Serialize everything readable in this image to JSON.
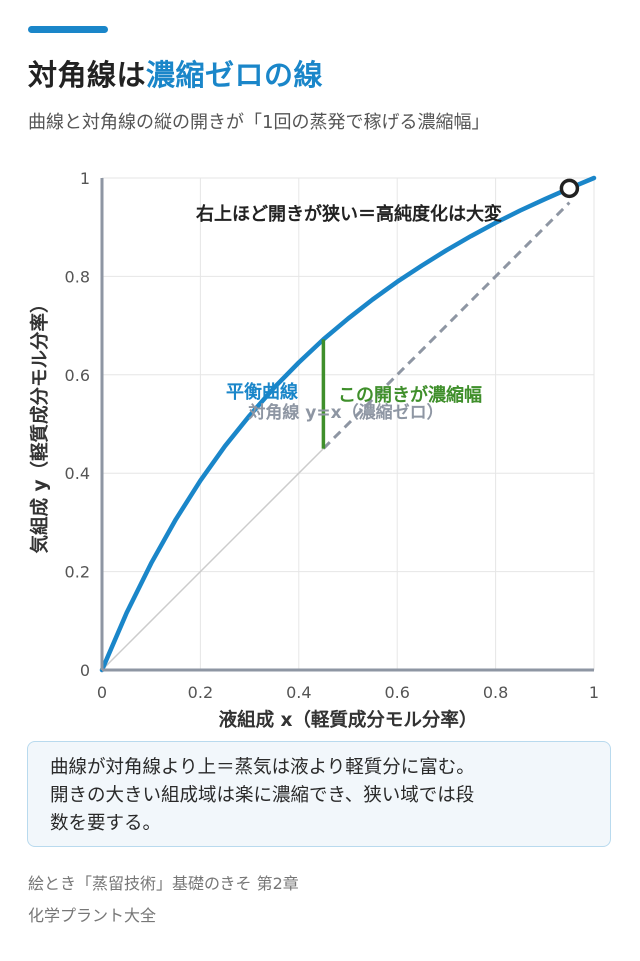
{
  "header": {
    "title_prefix": "対角線は",
    "title_highlight": "濃縮ゼロの線",
    "subtitle": "曲線と対角線の縦の開きが「1回の蒸発で稼げる濃縮幅」"
  },
  "chart_data": {
    "type": "line",
    "xlabel": "液組成 x（軽質成分モル分率）",
    "ylabel": "気組成 y（軽質成分モル分率）",
    "xlim": [
      0,
      1
    ],
    "ylim": [
      0,
      1
    ],
    "x_ticks": [
      0,
      0.2,
      0.4,
      0.6,
      0.8,
      1
    ],
    "x_tick_labels": [
      "0",
      "0.2",
      "0.4",
      "0.6",
      "0.8",
      "1"
    ],
    "y_ticks": [
      0,
      0.2,
      0.4,
      0.6,
      0.8,
      1
    ],
    "y_tick_labels": [
      "0",
      "0.2",
      "0.4",
      "0.6",
      "0.8",
      "1"
    ],
    "grid": true,
    "series": [
      {
        "name": "平衡曲線",
        "color": "#1a86c9",
        "x": [
          0,
          0.05,
          0.1,
          0.15,
          0.2,
          0.25,
          0.3,
          0.35,
          0.4,
          0.45,
          0.5,
          0.55,
          0.6,
          0.65,
          0.7,
          0.75,
          0.8,
          0.85,
          0.9,
          0.95,
          1.0
        ],
        "y": [
          0,
          0.116,
          0.217,
          0.306,
          0.385,
          0.455,
          0.517,
          0.574,
          0.625,
          0.672,
          0.714,
          0.753,
          0.789,
          0.822,
          0.853,
          0.882,
          0.909,
          0.934,
          0.957,
          0.979,
          1.0
        ]
      },
      {
        "name": "対角線 y=x（濃縮ゼロ）",
        "color": "#cccccc",
        "x": [
          0,
          1
        ],
        "y": [
          0,
          1
        ]
      }
    ],
    "gap_marker": {
      "x": 0.45,
      "y_low": 0.45,
      "y_high": 0.672,
      "color": "#3f8f2b",
      "label": "この開きが濃縮幅"
    },
    "highlight_point": {
      "x": 0.95,
      "y": 0.979,
      "label": "右上ほど開きが狭い＝高純度化は大変"
    },
    "colors": {
      "curve": "#1a86c9",
      "diagonal": "#cccccc",
      "diagonal_dash": "#8e96a3",
      "gap": "#3f8f2b",
      "axis": "#8e96a3",
      "grid": "#e6e6e6"
    }
  },
  "note": {
    "lines": [
      "曲線が対角線より上＝蒸気は液より軽質分に富む。",
      "開きの大きい組成域は楽に濃縮でき、狭い域では段",
      "数を要する。"
    ]
  },
  "source": {
    "line1": "絵とき「蒸留技術」基礎のきそ 第2章",
    "line2": "化学プラント大全"
  }
}
